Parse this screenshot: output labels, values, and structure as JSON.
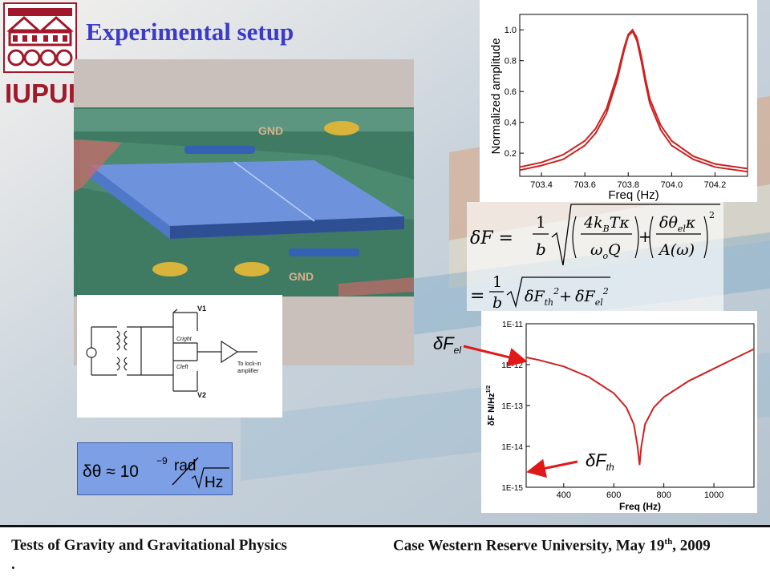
{
  "slide": {
    "title": "Experimental setup",
    "logo_text": "IUPUI",
    "footer_left": "Tests of Gravity and Gravitational Physics",
    "footer_right_main": "Case Western Reserve University, May 19",
    "footer_right_sup": "th",
    "footer_right_end": ", 2009",
    "footer_dot": "."
  },
  "sem_image": {
    "labels": [
      "GND",
      "GND"
    ]
  },
  "circuit": {
    "v1": "V1",
    "v2": "V2",
    "cright": "Cright",
    "cleft": "Cleft",
    "out_label_1": "To lock-in",
    "out_label_2": "amplifier"
  },
  "resolution_box": {
    "lhs": "δθ ≈ 10",
    "exp": "−9",
    "unit": "rad",
    "denom": "Hz"
  },
  "force_formula": {
    "line1_lhs": "δF =",
    "frac_num": "1",
    "frac_den": "b",
    "term1_num": "4k",
    "term1_sub": "B",
    "term1_rest": "Tκ",
    "term1_den_a": "ω",
    "term1_den_sub": "o",
    "term1_den_b": "Q",
    "term2_num_a": "δθ",
    "term2_num_sub": "el",
    "term2_num_b": "κ",
    "term2_den": "A(ω)",
    "plus": "+",
    "sq": "2",
    "line2_eq": "=",
    "line2_f1": "δF",
    "line2_s1": "th",
    "line2_f2": "δF",
    "line2_s2": "el"
  },
  "annotations": {
    "f_el_main": "δF",
    "f_el_sub": "el",
    "f_th_main": "δF",
    "f_th_sub": "th"
  },
  "chart_data": [
    {
      "type": "line",
      "xlabel": "Freq (Hz)",
      "ylabel": "Normalized amplitude",
      "xlim": [
        703.3,
        704.35
      ],
      "ylim": [
        0.05,
        1.1
      ],
      "xticks": [
        "703.4",
        "703.6",
        "703.8",
        "704.0",
        "704.2"
      ],
      "yticks": [
        "0.2",
        "0.4",
        "0.6",
        "0.8",
        "1.0"
      ],
      "color": "#cc2222",
      "series": [
        {
          "x": [
            703.3,
            703.4,
            703.5,
            703.6,
            703.65,
            703.7,
            703.75,
            703.78,
            703.8,
            703.82,
            703.84,
            703.86,
            703.88,
            703.9,
            703.95,
            704.0,
            704.1,
            704.2,
            704.3,
            704.35
          ],
          "values": [
            0.11,
            0.14,
            0.19,
            0.28,
            0.36,
            0.49,
            0.71,
            0.88,
            0.97,
            1.0,
            0.95,
            0.83,
            0.68,
            0.55,
            0.38,
            0.28,
            0.18,
            0.13,
            0.11,
            0.1
          ]
        },
        {
          "x": [
            703.3,
            703.4,
            703.5,
            703.6,
            703.65,
            703.7,
            703.75,
            703.78,
            703.8,
            703.82,
            703.84,
            703.86,
            703.88,
            703.9,
            703.95,
            704.0,
            704.1,
            704.2,
            704.3,
            704.35
          ],
          "values": [
            0.09,
            0.12,
            0.16,
            0.25,
            0.33,
            0.46,
            0.68,
            0.86,
            0.96,
            0.99,
            0.93,
            0.8,
            0.65,
            0.52,
            0.35,
            0.25,
            0.16,
            0.11,
            0.09,
            0.08
          ]
        }
      ]
    },
    {
      "type": "line",
      "xlabel": "Freq (Hz)",
      "ylabel": "δF N/Hz",
      "ylabel_sup": "1/2",
      "log_y": true,
      "xlim": [
        250,
        1160
      ],
      "ylim": [
        1e-15,
        1e-11
      ],
      "xticks": [
        "400",
        "600",
        "800",
        "1000"
      ],
      "yticks": [
        "1E-15",
        "1E-14",
        "1E-13",
        "1E-12",
        "1E-11"
      ],
      "color": "#cc2222",
      "series": [
        {
          "x": [
            250,
            300,
            400,
            500,
            600,
            650,
            680,
            695,
            703,
            710,
            725,
            760,
            800,
            900,
            1000,
            1100,
            1160
          ],
          "values": [
            1.5e-12,
            1.3e-12,
            9e-13,
            5e-13,
            2e-13,
            9e-14,
            3.5e-14,
            1e-14,
            3.5e-15,
            1e-14,
            3.5e-14,
            9e-14,
            1.6e-13,
            4e-13,
            8e-13,
            1.6e-12,
            2.4e-12
          ]
        }
      ]
    }
  ]
}
